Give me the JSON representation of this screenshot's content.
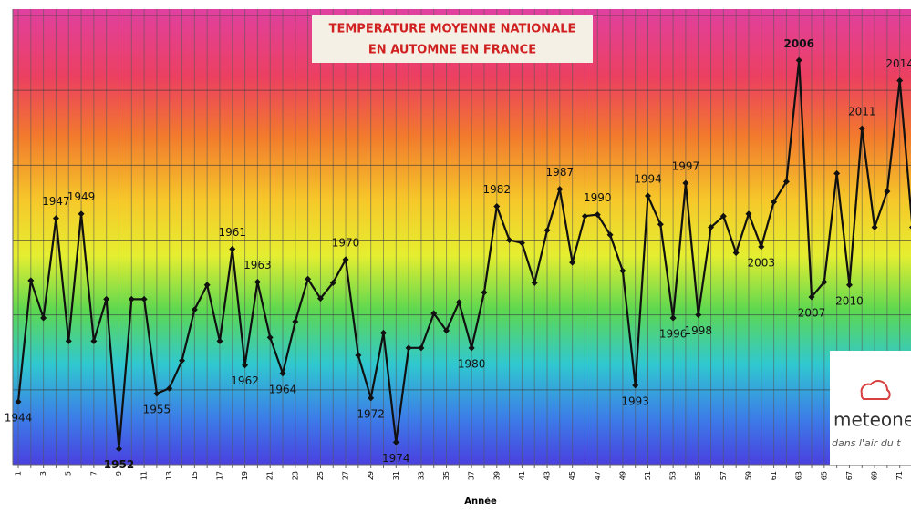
{
  "chart_data": {
    "type": "line",
    "title": [
      "TEMPERATURE MOYENNE NATIONALE",
      "EN AUTOMNE EN FRANCE"
    ],
    "x_label": "Année",
    "categories": [
      "1",
      null,
      "3",
      null,
      "5",
      null,
      "7",
      null,
      "9",
      null,
      "11",
      null,
      "13",
      null,
      "15",
      null,
      "17",
      null,
      "19",
      null,
      "21",
      null,
      "23",
      null,
      "25",
      null,
      "27",
      null,
      "29",
      null,
      "31",
      null,
      "33",
      null,
      "35",
      null,
      "37",
      null,
      "39",
      null,
      "41",
      null,
      "43",
      null,
      "45",
      null,
      "47",
      null,
      "49",
      null,
      "51",
      null,
      "53",
      null,
      "55",
      null,
      "57",
      null,
      "59",
      null,
      "61",
      null,
      "63",
      null,
      "65",
      null,
      "67",
      null,
      "69",
      null,
      "71",
      null
    ],
    "values": [
      0.84,
      2.46,
      1.96,
      3.29,
      1.65,
      3.35,
      1.65,
      2.21,
      0.21,
      2.21,
      2.21,
      0.95,
      1.02,
      1.39,
      2.07,
      2.4,
      1.65,
      2.88,
      1.33,
      2.44,
      1.7,
      1.22,
      1.91,
      2.48,
      2.22,
      2.43,
      2.74,
      1.46,
      0.89,
      1.76,
      0.3,
      1.56,
      1.56,
      2.02,
      1.79,
      2.17,
      1.56,
      2.3,
      3.45,
      3.0,
      2.96,
      2.43,
      3.13,
      3.68,
      2.7,
      3.32,
      3.34,
      3.07,
      2.59,
      1.06,
      3.59,
      3.21,
      1.96,
      3.76,
      2.0,
      3.17,
      3.32,
      2.83,
      3.35,
      2.91,
      3.51,
      3.78,
      5.4,
      2.24,
      2.44,
      3.89,
      2.4,
      4.49,
      3.17,
      3.65,
      5.13,
      3.17
    ],
    "point_labels": [
      "1944",
      null,
      null,
      "1947",
      null,
      "1949",
      null,
      null,
      "1952",
      null,
      null,
      "1955",
      null,
      null,
      null,
      null,
      null,
      "1961",
      "1962",
      "1963",
      null,
      "1964",
      null,
      null,
      null,
      null,
      "1970",
      null,
      "1972",
      null,
      "1974",
      null,
      null,
      null,
      null,
      null,
      "1980",
      null,
      "1982",
      null,
      null,
      null,
      null,
      "1987",
      null,
      null,
      "1990",
      null,
      null,
      "1993",
      "1994",
      null,
      "1996",
      "1997",
      "1998",
      null,
      null,
      null,
      null,
      "2003",
      null,
      null,
      "2006",
      "2007",
      null,
      null,
      "2010",
      "2011",
      null,
      null,
      "2014",
      null
    ],
    "color": "#111111",
    "ylim": [
      0,
      6
    ],
    "yticks": [
      0,
      1,
      2,
      3,
      4,
      5,
      6
    ],
    "grid": true,
    "logo": {
      "name": "meteone",
      "tagline": "dans l'air du t"
    }
  }
}
